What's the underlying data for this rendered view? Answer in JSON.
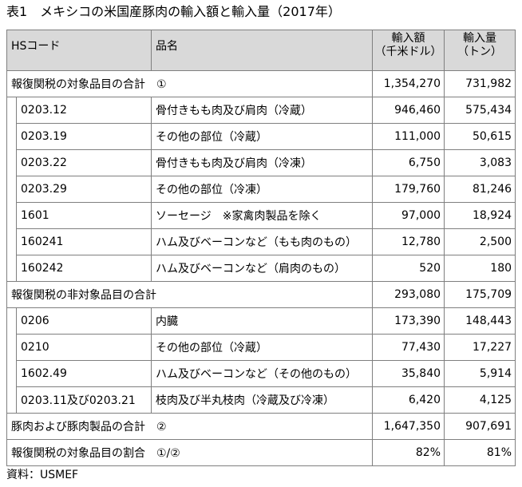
{
  "title": "表1　メキシコの米国産豚肉の輸入額と輸入量（2017年）",
  "headers": {
    "hs": "HSコード",
    "name": "品名",
    "value_1": "輸入額",
    "value_2": "（千米ドル）",
    "qty_1": "輸入量",
    "qty_2": "（トン）"
  },
  "groups": [
    {
      "label": "報復関税の対象品目の合計　①",
      "value": "1,354,270",
      "qty": "731,982",
      "items": [
        {
          "code": "0203.12",
          "name": "骨付きもも肉及び肩肉（冷蔵）",
          "value": "946,460",
          "qty": "575,434"
        },
        {
          "code": "0203.19",
          "name": "その他の部位（冷蔵）",
          "value": "111,000",
          "qty": "50,615"
        },
        {
          "code": "0203.22",
          "name": "骨付きもも肉及び肩肉（冷凍）",
          "value": "6,750",
          "qty": "3,083"
        },
        {
          "code": "0203.29",
          "name": "その他の部位（冷凍）",
          "value": "179,760",
          "qty": "81,246"
        },
        {
          "code": "1601",
          "name": "ソーセージ　※家禽肉製品を除く",
          "value": "97,000",
          "qty": "18,924"
        },
        {
          "code": "160241",
          "name": "ハム及びベーコンなど（もも肉のもの）",
          "value": "12,780",
          "qty": "2,500"
        },
        {
          "code": "160242",
          "name": "ハム及びベーコンなど（肩肉のもの）",
          "value": "520",
          "qty": "180"
        }
      ]
    },
    {
      "label": "報復関税の非対象品目の合計",
      "value": "293,080",
      "qty": "175,709",
      "items": [
        {
          "code": "0206",
          "name": "内臓",
          "value": "173,390",
          "qty": "148,443"
        },
        {
          "code": "0210",
          "name": "その他の部位（冷蔵）",
          "value": "77,430",
          "qty": "17,227"
        },
        {
          "code": "1602.49",
          "name": "ハム及びベーコンなど（その他のもの）",
          "value": "35,840",
          "qty": "5,914"
        },
        {
          "code": "0203.11及び0203.21",
          "name": "枝肉及び半丸枝肉（冷蔵及び冷凍）",
          "value": "6,420",
          "qty": "4,125"
        }
      ]
    }
  ],
  "total": {
    "label": "豚肉および豚肉製品の合計　②",
    "value": "1,647,350",
    "qty": "907,691"
  },
  "ratio": {
    "label": "報復関税の対象品目の割合　①/②",
    "value": "82%",
    "qty": "81%"
  },
  "source": "資料：USMEF"
}
